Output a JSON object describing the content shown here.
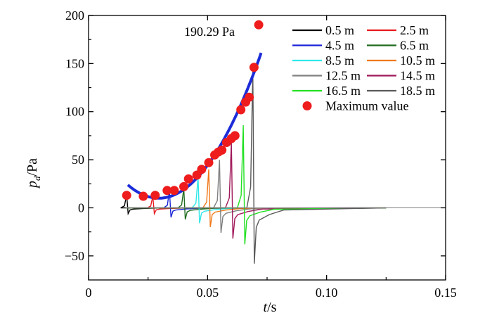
{
  "chart_data": {
    "type": "line",
    "xlabel": {
      "main": "t",
      "unit": "/s"
    },
    "ylabel": {
      "main": "p",
      "sub": "d",
      "unit": "/Pa"
    },
    "xlim": [
      0,
      0.15
    ],
    "ylim": [
      -75,
      200
    ],
    "xticks": [
      0,
      0.05,
      0.1,
      0.15
    ],
    "xtick_labels": [
      "0",
      "0.05",
      "0.10",
      "0.15"
    ],
    "yticks": [
      -50,
      0,
      50,
      100,
      150,
      200
    ],
    "ytick_labels": [
      "−50",
      "0",
      "50",
      "100",
      "150",
      "200"
    ],
    "legend_position": "top-right",
    "series": [
      {
        "name": "0.5 m",
        "color": "#000000",
        "t0": 0.016,
        "peak": 14,
        "trough": -6
      },
      {
        "name": "2.5 m",
        "color": "#e8191f",
        "t0": 0.027,
        "peak": 12,
        "trough": -6
      },
      {
        "name": "4.5 m",
        "color": "#1a24d8",
        "t0": 0.034,
        "peak": 18,
        "trough": -10
      },
      {
        "name": "6.5 m",
        "color": "#1e6b1e",
        "t0": 0.04,
        "peak": 20,
        "trough": -12
      },
      {
        "name": "8.5 m",
        "color": "#30e8e8",
        "t0": 0.046,
        "peak": 32,
        "trough": -16
      },
      {
        "name": "10.5 m",
        "color": "#f07818",
        "t0": 0.0505,
        "peak": 40,
        "trough": -20
      },
      {
        "name": "12.5 m",
        "color": "#808080",
        "t0": 0.055,
        "peak": 50,
        "trough": -26
      },
      {
        "name": "14.5 m",
        "color": "#a0195a",
        "t0": 0.06,
        "peak": 68,
        "trough": -32
      },
      {
        "name": "16.5 m",
        "color": "#22e022",
        "t0": 0.065,
        "peak": 86,
        "trough": -38
      },
      {
        "name": "18.5 m",
        "color": "#5a5a5a",
        "t0": 0.069,
        "peak": 145,
        "trough": -58
      }
    ],
    "max_points": {
      "name": "Maximum value",
      "color": "#ee1c1c",
      "x": [
        0.016,
        0.023,
        0.028,
        0.033,
        0.036,
        0.04,
        0.042,
        0.0455,
        0.0475,
        0.0505,
        0.053,
        0.0545,
        0.056,
        0.058,
        0.06,
        0.0615,
        0.064,
        0.066,
        0.0675,
        0.0695,
        0.0715
      ],
      "y": [
        13,
        12,
        13,
        18,
        18,
        22,
        30,
        34,
        40,
        47,
        55,
        58,
        60,
        68,
        72,
        75,
        102,
        110,
        115,
        146,
        190.29
      ]
    },
    "fit_curve": {
      "color": "#1c2cd8",
      "x_range": [
        0.0165,
        0.0725
      ],
      "coeffs": {
        "a": 81700,
        "x0": 0.0295,
        "c": 10
      }
    },
    "annotation": {
      "text": "190.29 Pa"
    }
  }
}
